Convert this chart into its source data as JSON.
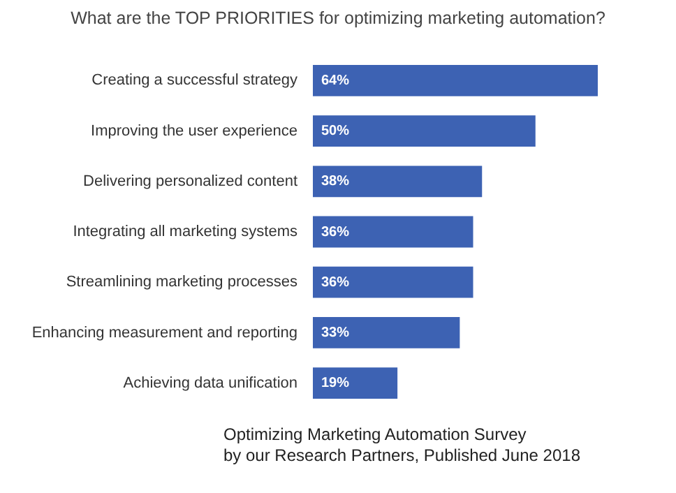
{
  "chart_data": {
    "type": "bar",
    "orientation": "horizontal",
    "title": "What are the TOP PRIORITIES for optimizing marketing automation?",
    "categories": [
      "Creating a successful strategy",
      "Improving the user experience",
      "Delivering personalized content",
      "Integrating all marketing systems",
      "Streamlining marketing processes",
      "Enhancing measurement and reporting",
      "Achieving data unification"
    ],
    "values": [
      64,
      50,
      38,
      36,
      36,
      33,
      19
    ],
    "value_labels": [
      "64%",
      "50%",
      "38%",
      "36%",
      "36%",
      "33%",
      "19%"
    ],
    "color": "#3d62b3",
    "annotations": [
      "Optimizing Marketing Automation Survey",
      "by our Research Partners, Published June 2018"
    ]
  }
}
